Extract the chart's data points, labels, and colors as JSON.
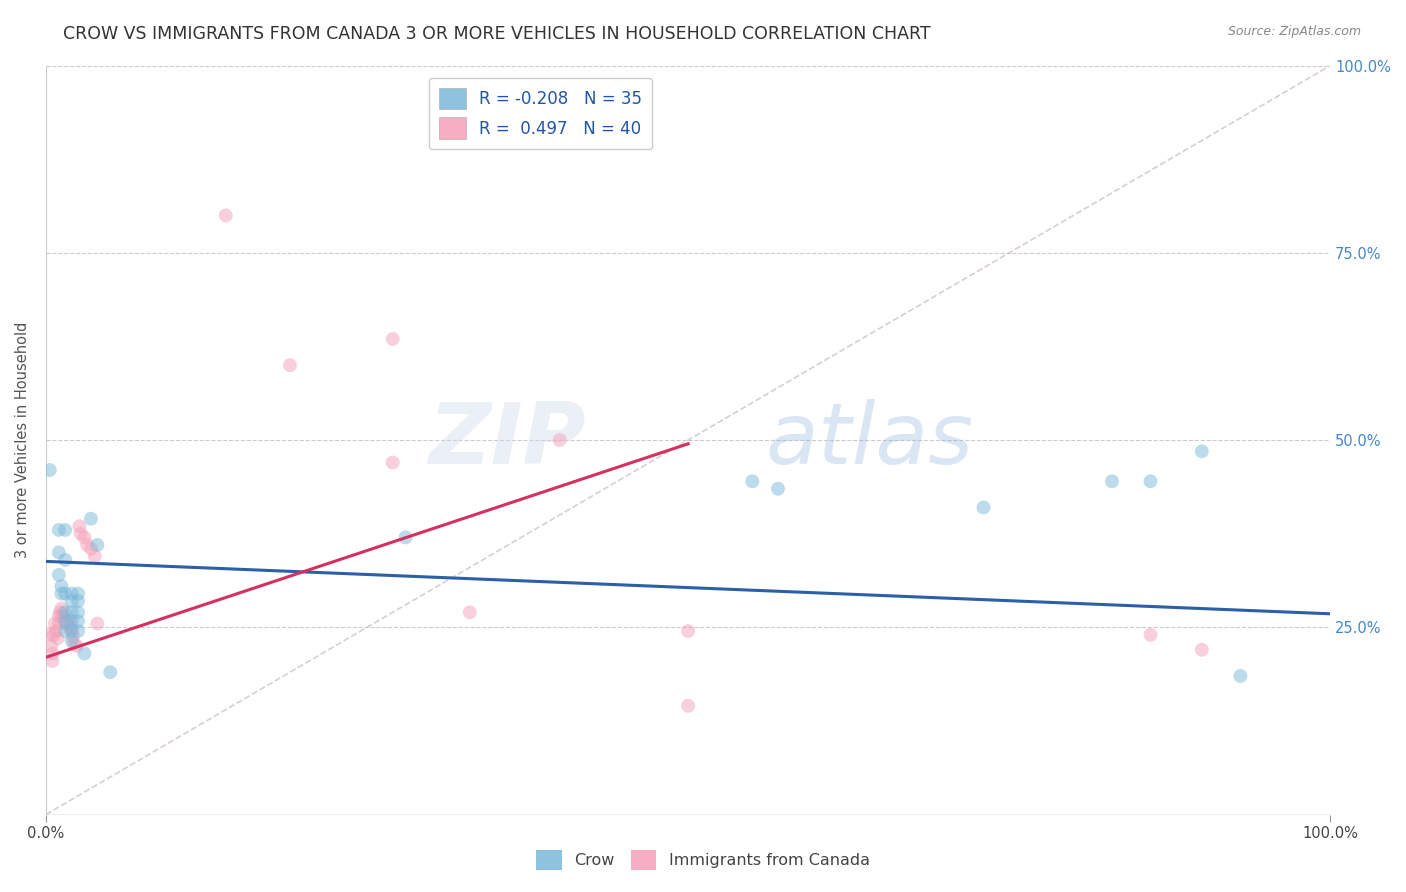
{
  "title": "CROW VS IMMIGRANTS FROM CANADA 3 OR MORE VEHICLES IN HOUSEHOLD CORRELATION CHART",
  "source": "Source: ZipAtlas.com",
  "ylabel": "3 or more Vehicles in Household",
  "xlim": [
    0.0,
    1.0
  ],
  "ylim": [
    0.0,
    1.0
  ],
  "crow_color": "#7ab8d9",
  "canada_color": "#f4a0b8",
  "crow_line_color": "#2b5fa8",
  "canada_line_color": "#d63060",
  "diagonal_color": "#c8b8c8",
  "background_color": "#ffffff",
  "grid_color": "#cccccc",
  "marker_size": 100,
  "marker_alpha": 0.5,
  "watermark_zip": "ZIP",
  "watermark_atlas": "atlas",
  "title_fontsize": 12.5,
  "axis_fontsize": 10,
  "crow_points": [
    [
      0.003,
      0.46
    ],
    [
      0.01,
      0.38
    ],
    [
      0.01,
      0.35
    ],
    [
      0.015,
      0.38
    ],
    [
      0.01,
      0.32
    ],
    [
      0.012,
      0.305
    ],
    [
      0.012,
      0.295
    ],
    [
      0.015,
      0.34
    ],
    [
      0.015,
      0.295
    ],
    [
      0.02,
      0.295
    ],
    [
      0.025,
      0.295
    ],
    [
      0.02,
      0.285
    ],
    [
      0.025,
      0.285
    ],
    [
      0.015,
      0.27
    ],
    [
      0.02,
      0.27
    ],
    [
      0.025,
      0.27
    ],
    [
      0.015,
      0.258
    ],
    [
      0.02,
      0.258
    ],
    [
      0.025,
      0.258
    ],
    [
      0.015,
      0.245
    ],
    [
      0.02,
      0.245
    ],
    [
      0.025,
      0.245
    ],
    [
      0.02,
      0.232
    ],
    [
      0.03,
      0.215
    ],
    [
      0.035,
      0.395
    ],
    [
      0.04,
      0.36
    ],
    [
      0.05,
      0.19
    ],
    [
      0.28,
      0.37
    ],
    [
      0.55,
      0.445
    ],
    [
      0.57,
      0.435
    ],
    [
      0.73,
      0.41
    ],
    [
      0.83,
      0.445
    ],
    [
      0.86,
      0.445
    ],
    [
      0.9,
      0.485
    ],
    [
      0.93,
      0.185
    ]
  ],
  "canada_points": [
    [
      0.003,
      0.24
    ],
    [
      0.004,
      0.225
    ],
    [
      0.005,
      0.215
    ],
    [
      0.005,
      0.205
    ],
    [
      0.006,
      0.24
    ],
    [
      0.007,
      0.255
    ],
    [
      0.008,
      0.245
    ],
    [
      0.009,
      0.235
    ],
    [
      0.01,
      0.265
    ],
    [
      0.01,
      0.255
    ],
    [
      0.011,
      0.27
    ],
    [
      0.012,
      0.275
    ],
    [
      0.013,
      0.265
    ],
    [
      0.014,
      0.265
    ],
    [
      0.015,
      0.26
    ],
    [
      0.016,
      0.255
    ],
    [
      0.017,
      0.255
    ],
    [
      0.018,
      0.26
    ],
    [
      0.019,
      0.248
    ],
    [
      0.02,
      0.248
    ],
    [
      0.021,
      0.238
    ],
    [
      0.022,
      0.228
    ],
    [
      0.024,
      0.225
    ],
    [
      0.026,
      0.385
    ],
    [
      0.027,
      0.375
    ],
    [
      0.03,
      0.37
    ],
    [
      0.032,
      0.36
    ],
    [
      0.035,
      0.355
    ],
    [
      0.038,
      0.345
    ],
    [
      0.04,
      0.255
    ],
    [
      0.14,
      0.8
    ],
    [
      0.19,
      0.6
    ],
    [
      0.27,
      0.635
    ],
    [
      0.27,
      0.47
    ],
    [
      0.33,
      0.27
    ],
    [
      0.4,
      0.5
    ],
    [
      0.5,
      0.245
    ],
    [
      0.5,
      0.145
    ],
    [
      0.86,
      0.24
    ],
    [
      0.9,
      0.22
    ]
  ],
  "crow_trend": [
    0.0,
    1.0,
    0.338,
    0.268
  ],
  "canada_trend": [
    0.0,
    0.5,
    0.21,
    0.49
  ]
}
